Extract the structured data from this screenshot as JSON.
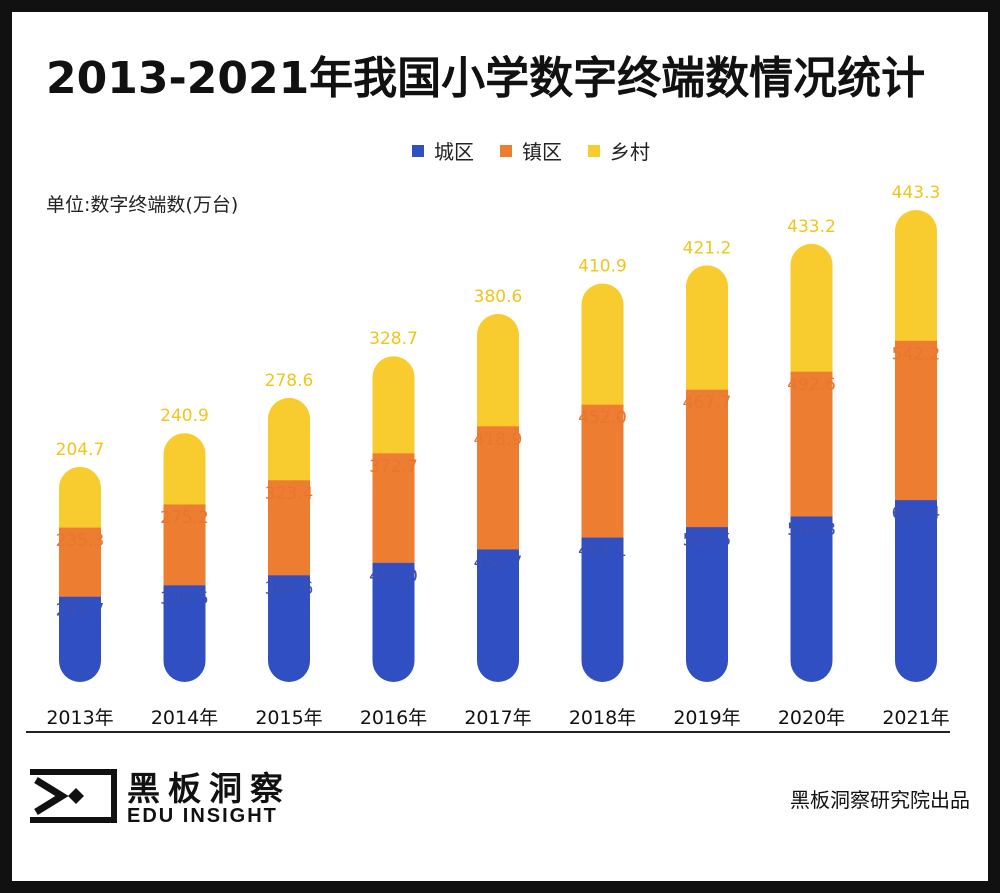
{
  "title": "2013-2021年我国小学数字终端数情况统计",
  "unit": "单位:数字终端数(万台)",
  "legend": [
    {
      "name": "城区",
      "color": "#2F4FC2"
    },
    {
      "name": "镇区",
      "color": "#ED7D31"
    },
    {
      "name": "乡村",
      "color": "#F8CB2E"
    }
  ],
  "chart_data": {
    "type": "bar",
    "stacked": true,
    "categories": [
      "2013年",
      "2014年",
      "2015年",
      "2016年",
      "2017年",
      "2018年",
      "2019年",
      "2020年",
      "2021年"
    ],
    "series": [
      {
        "name": "城区",
        "color": "#2F4FC2",
        "label_color": "#3F4FB0",
        "values": [
          291.7,
          330.5,
          364.6,
          407.0,
          452.7,
          493.1,
          528.5,
          564.8,
          620.4
        ]
      },
      {
        "name": "镇区",
        "color": "#ED7D31",
        "label_color": "#E8762E",
        "values": [
          235.3,
          275.2,
          323.4,
          372.7,
          418.9,
          452.0,
          467.7,
          492.6,
          542.2
        ]
      },
      {
        "name": "乡村",
        "color": "#F8CB2E",
        "label_color": "#F0C419",
        "values": [
          204.7,
          240.9,
          278.6,
          328.7,
          380.6,
          410.9,
          421.2,
          433.2,
          443.3
        ]
      }
    ],
    "legend_position": "top",
    "grid": false,
    "ylim": [
      0,
      1606
    ]
  },
  "footer": {
    "brand_cn": "黑板洞察",
    "brand_en": "EDU INSIGHT",
    "credit": "黑板洞察研究院出品"
  }
}
